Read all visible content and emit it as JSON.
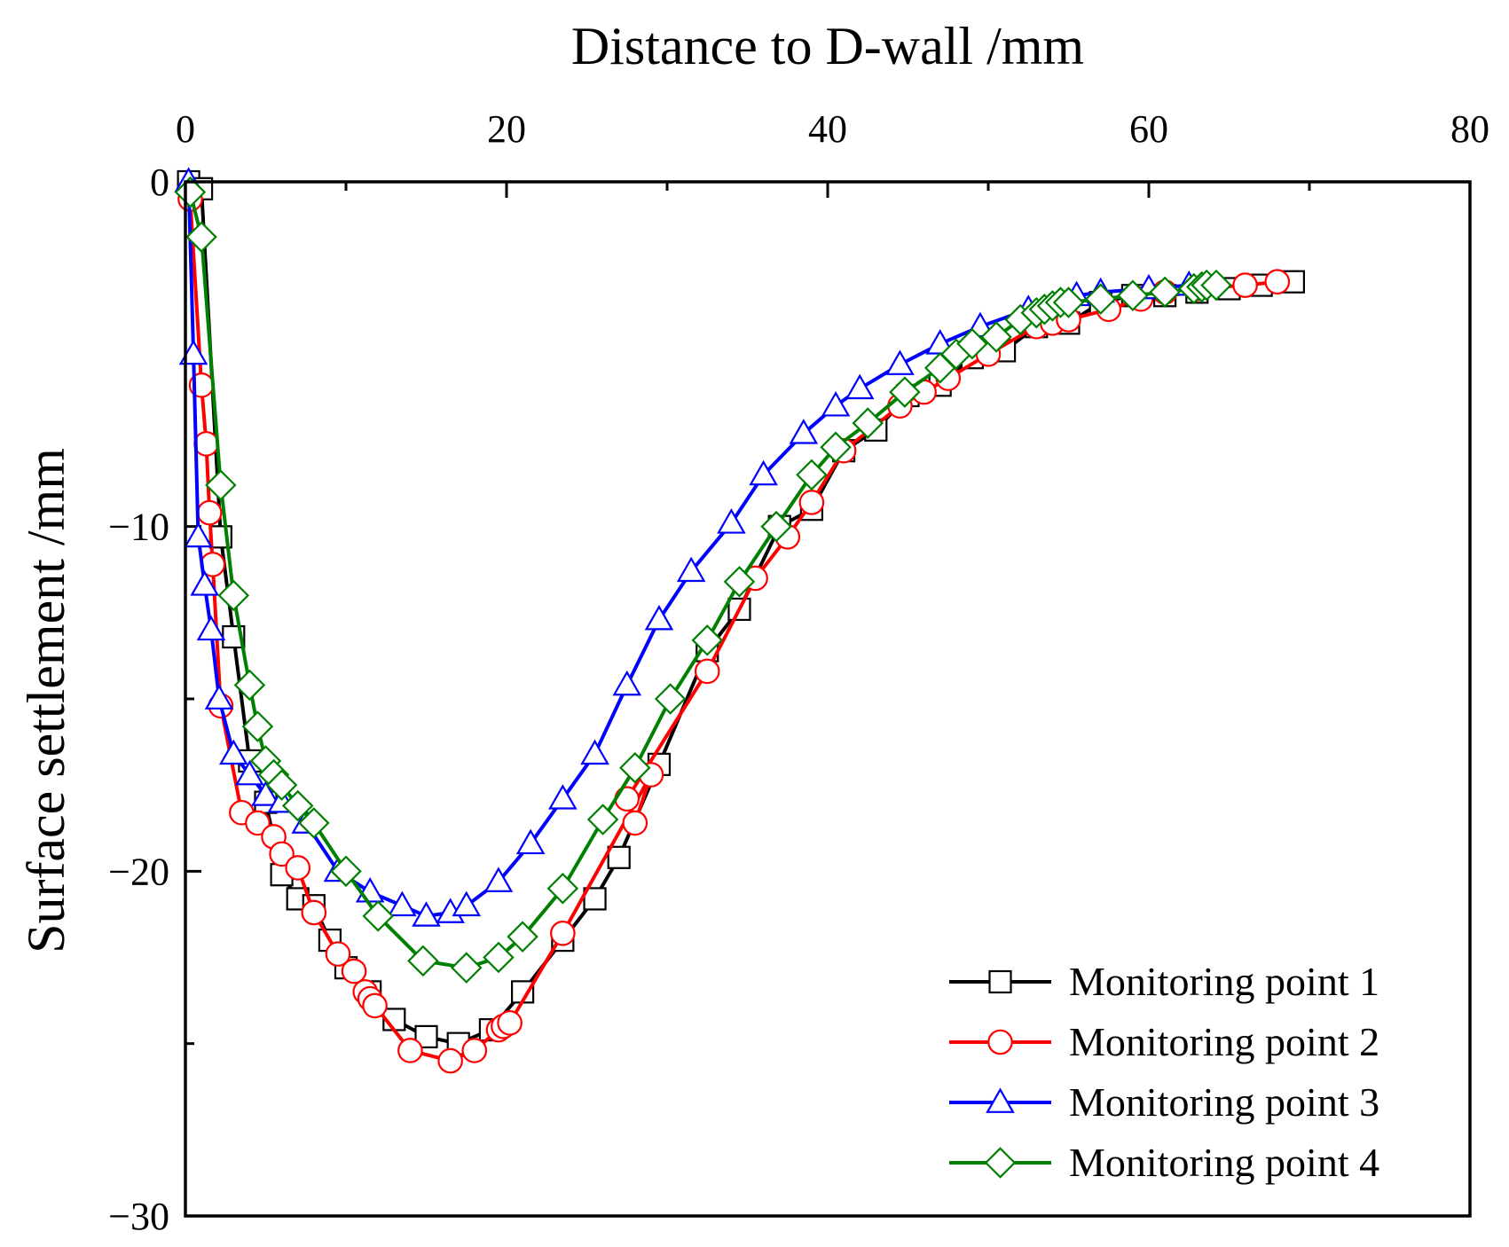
{
  "chart_data": {
    "type": "line",
    "xlabel": "Distance to D-wall /mm",
    "ylabel": "Surface settlement /mm",
    "xlim": [
      0,
      80
    ],
    "ylim": [
      -30,
      0
    ],
    "x_axis_position": "top",
    "x_ticks": [
      0,
      20,
      40,
      60,
      80
    ],
    "x_tick_labels": [
      "0",
      "20",
      "40",
      "60",
      "80"
    ],
    "y_ticks": [
      0,
      -10,
      -20,
      -30
    ],
    "y_tick_labels": [
      "0",
      "−10",
      "−20",
      "−30"
    ],
    "grid": false,
    "legend_position": "bottom-right",
    "series": [
      {
        "name": "Monitoring point 1",
        "color": "#000000",
        "marker": "square",
        "x": [
          0.2,
          1.0,
          2.2,
          3.0,
          4.0,
          5.0,
          6.0,
          7.0,
          8.0,
          9.0,
          10.0,
          11.5,
          13.0,
          15.0,
          17.0,
          19.0,
          21.0,
          23.5,
          25.5,
          27.0,
          29.5,
          32.5,
          34.5,
          37.0,
          39.0,
          41.0,
          43.0,
          45.0,
          47.0,
          49.0,
          51.0,
          53.0,
          55.0,
          57.0,
          59.0,
          61.0,
          63.0,
          65.0,
          67.0,
          69.0
        ],
        "y": [
          0.0,
          -0.2,
          -10.3,
          -13.2,
          -16.8,
          -18.0,
          -20.1,
          -20.8,
          -21.0,
          -22.0,
          -22.8,
          -23.5,
          -24.3,
          -24.8,
          -25.0,
          -24.6,
          -23.5,
          -22.0,
          -20.8,
          -19.6,
          -16.9,
          -13.6,
          -12.4,
          -10.0,
          -9.5,
          -7.8,
          -7.2,
          -6.2,
          -5.9,
          -5.1,
          -4.9,
          -4.2,
          -4.1,
          -3.5,
          -3.3,
          -3.3,
          -3.2,
          -3.1,
          -3.0,
          -2.9
        ]
      },
      {
        "name": "Monitoring point 2",
        "color": "#ff0000",
        "marker": "circle",
        "x": [
          0.3,
          1.0,
          1.3,
          1.5,
          1.7,
          2.2,
          3.5,
          4.5,
          5.5,
          6.0,
          7.0,
          8.0,
          9.5,
          10.5,
          11.2,
          11.5,
          11.8,
          14.0,
          16.5,
          18.0,
          19.5,
          19.8,
          20.2,
          23.5,
          29.0,
          28.0,
          27.5,
          32.5,
          35.5,
          37.5,
          39.0,
          41.0,
          44.5,
          46.0,
          47.5,
          50.0,
          53.0,
          54.0,
          55.0,
          57.5,
          59.5,
          61.0,
          63.0,
          66.0,
          68.0
        ],
        "y": [
          -0.5,
          -5.9,
          -7.6,
          -9.6,
          -11.1,
          -15.2,
          -18.3,
          -18.6,
          -19.0,
          -19.5,
          -19.9,
          -21.2,
          -22.4,
          -22.9,
          -23.5,
          -23.7,
          -23.9,
          -25.2,
          -25.5,
          -25.2,
          -24.6,
          -24.5,
          -24.4,
          -21.8,
          -17.2,
          -18.6,
          -17.9,
          -14.2,
          -11.5,
          -10.3,
          -9.3,
          -7.8,
          -6.5,
          -6.1,
          -5.7,
          -5.0,
          -4.2,
          -4.1,
          -4.0,
          -3.7,
          -3.4,
          -3.2,
          -3.1,
          -3.0,
          -2.9
        ]
      },
      {
        "name": "Monitoring point 3",
        "color": "#0000ff",
        "marker": "triangle",
        "x": [
          0.2,
          0.5,
          0.8,
          1.2,
          1.6,
          2.1,
          3.0,
          4.0,
          5.0,
          6.0,
          7.5,
          9.5,
          11.5,
          13.5,
          15.0,
          16.5,
          17.5,
          19.5,
          21.5,
          23.5,
          25.5,
          27.5,
          29.5,
          31.5,
          34.0,
          36.0,
          38.5,
          40.5,
          42.0,
          44.5,
          47.0,
          49.5,
          52.5,
          55.5,
          57.0,
          60.0,
          62.5
        ],
        "y": [
          0.0,
          -5.0,
          -10.3,
          -11.7,
          -13.0,
          -15.0,
          -16.6,
          -17.2,
          -17.8,
          -18.0,
          -18.6,
          -20.0,
          -20.6,
          -21.0,
          -21.3,
          -21.2,
          -21.0,
          -20.3,
          -19.2,
          -17.9,
          -16.6,
          -14.6,
          -12.7,
          -11.3,
          -9.9,
          -8.5,
          -7.3,
          -6.5,
          -6.0,
          -5.3,
          -4.7,
          -4.2,
          -3.7,
          -3.3,
          -3.2,
          -3.1,
          -3.0
        ]
      },
      {
        "name": "Monitoring point 4",
        "color": "#008000",
        "marker": "diamond",
        "x": [
          0.3,
          1.0,
          2.2,
          3.0,
          4.0,
          4.5,
          5.0,
          5.5,
          6.0,
          7.0,
          8.0,
          10.0,
          12.0,
          14.8,
          17.5,
          19.5,
          21.0,
          23.5,
          26.0,
          28.0,
          30.2,
          32.5,
          34.5,
          36.8,
          39.0,
          40.5,
          42.5,
          44.8,
          47.0,
          48.0,
          49.0,
          50.5,
          52.0,
          53.0,
          53.5,
          54.0,
          54.5,
          55.0,
          57.0,
          59.0,
          61.0,
          62.8,
          63.3,
          63.6,
          64.2
        ],
        "y": [
          -0.3,
          -1.6,
          -8.8,
          -12.0,
          -14.6,
          -15.8,
          -16.8,
          -17.2,
          -17.5,
          -18.1,
          -18.6,
          -20.0,
          -21.3,
          -22.6,
          -22.8,
          -22.5,
          -21.9,
          -20.5,
          -18.5,
          -17.0,
          -15.0,
          -13.3,
          -11.6,
          -10.0,
          -8.5,
          -7.7,
          -7.0,
          -6.1,
          -5.4,
          -5.0,
          -4.7,
          -4.5,
          -4.0,
          -3.8,
          -3.7,
          -3.6,
          -3.5,
          -3.5,
          -3.4,
          -3.3,
          -3.2,
          -3.1,
          -3.05,
          -3.0,
          -3.0
        ]
      }
    ]
  }
}
